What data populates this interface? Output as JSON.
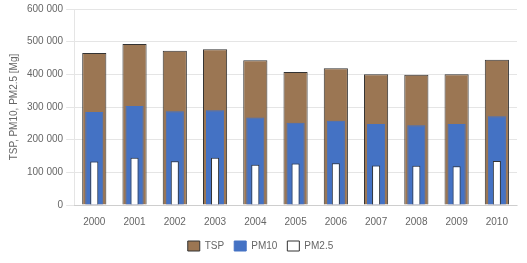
{
  "chart_data": {
    "type": "bar",
    "categories": [
      "2000",
      "2001",
      "2002",
      "2003",
      "2004",
      "2005",
      "2006",
      "2007",
      "2008",
      "2009",
      "2010"
    ],
    "series": [
      {
        "name": "TSP",
        "color": "#9B7653",
        "values": [
          465000,
          493000,
          472000,
          477000,
          443000,
          407000,
          419000,
          400000,
          399000,
          400000,
          445000
        ]
      },
      {
        "name": "PM10",
        "color": "#4472C4",
        "values": [
          285000,
          303000,
          287000,
          290000,
          268000,
          252000,
          258000,
          248000,
          244000,
          248000,
          272000
        ]
      },
      {
        "name": "PM2.5",
        "color": "#FFFFFF",
        "values": [
          133000,
          145000,
          134000,
          145000,
          123000,
          127000,
          128000,
          121000,
          120000,
          119000,
          135000
        ]
      }
    ],
    "ylabel": "TSP, PM10, PM2.5 [Mg]",
    "ylim": [
      0,
      600000
    ],
    "yticks": [
      0,
      {
        "value": 100000,
        "label": "100 000"
      },
      {
        "value": 200000,
        "label": "200 000"
      },
      {
        "value": 300000,
        "label": "300 000"
      },
      {
        "value": 400000,
        "label": "400 000"
      },
      {
        "value": 500000,
        "label": "500 000"
      },
      {
        "value": 600000,
        "label": "600 000"
      }
    ],
    "grid": true,
    "legend": "bottom"
  }
}
